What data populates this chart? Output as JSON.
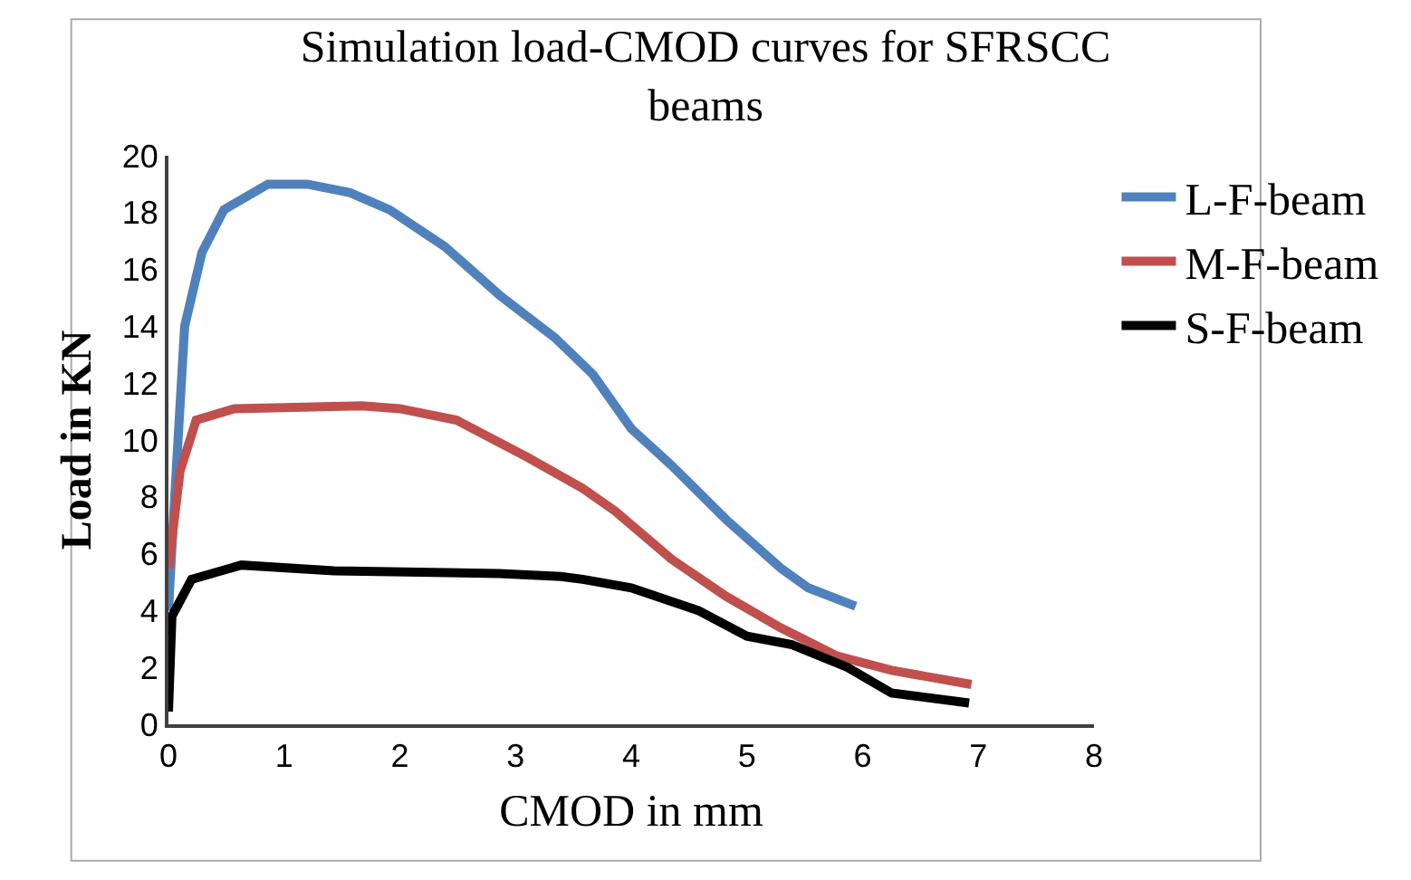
{
  "chart_data": {
    "type": "line",
    "title": "Simulation load-CMOD curves for SFRSCC beams",
    "xlabel": "CMOD in mm",
    "ylabel": "Load in KN",
    "xlim": [
      0,
      8
    ],
    "xticks": [
      0,
      1,
      2,
      3,
      4,
      5,
      6,
      7,
      8
    ],
    "ylim": [
      0,
      20
    ],
    "yticks": [
      0,
      2,
      4,
      6,
      8,
      10,
      12,
      14,
      16,
      18,
      20
    ],
    "legend": "top right",
    "marker": "none",
    "line_style": "solid",
    "series": [
      {
        "name": "L-F-beam",
        "color": "#4f81bd",
        "x": [
          0,
          0.05,
          0.14,
          0.29,
          0.48,
          0.86,
          1.2,
          1.57,
          1.91,
          2.39,
          2.86,
          3.34,
          3.67,
          4.0,
          4.35,
          4.82,
          5.29,
          5.53,
          5.94
        ],
        "values": [
          4,
          7.7,
          14,
          16.6,
          18.1,
          19.0,
          19.0,
          18.7,
          18.1,
          16.8,
          15.1,
          13.6,
          12.3,
          10.4,
          9.1,
          7.2,
          5.5,
          4.8,
          4.15
        ]
      },
      {
        "name": "M-F-beam",
        "color": "#c0504d",
        "x": [
          0,
          0.1,
          0.24,
          0.57,
          1.67,
          2.0,
          2.49,
          3.1,
          3.58,
          3.86,
          4.35,
          4.82,
          5.29,
          5.78,
          6.25,
          6.94
        ],
        "values": [
          5.5,
          8.9,
          10.7,
          11.1,
          11.2,
          11.1,
          10.7,
          9.4,
          8.3,
          7.5,
          5.8,
          4.5,
          3.4,
          2.4,
          1.9,
          1.4
        ]
      },
      {
        "name": "S-F-beam",
        "color": "#000000",
        "x": [
          0,
          0.03,
          0.2,
          0.63,
          1.43,
          2.86,
          3.39,
          3.58,
          4.0,
          4.58,
          5.0,
          5.39,
          5.87,
          6.25,
          6.92
        ],
        "values": [
          0.45,
          3.8,
          5.1,
          5.6,
          5.4,
          5.3,
          5.2,
          5.1,
          4.8,
          4.0,
          3.1,
          2.8,
          2.0,
          1.1,
          0.75
        ]
      }
    ]
  }
}
